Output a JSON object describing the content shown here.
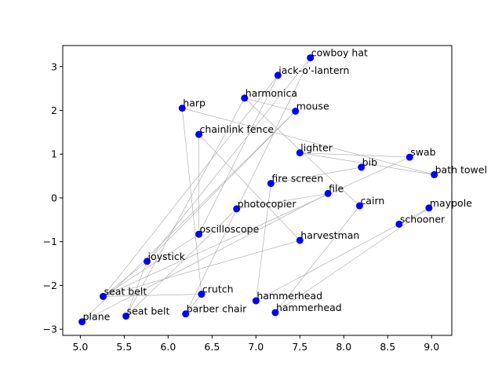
{
  "chart_data": {
    "type": "scatter",
    "title": "",
    "xlabel": "",
    "ylabel": "",
    "xlim": [
      4.8,
      9.23
    ],
    "ylim": [
      -3.14,
      3.48
    ],
    "xticks": [
      5.0,
      5.5,
      6.0,
      6.5,
      7.0,
      7.5,
      8.0,
      8.5,
      9.0
    ],
    "xtick_labels": [
      "5.0",
      "5.5",
      "6.0",
      "6.5",
      "7.0",
      "7.5",
      "8.0",
      "8.5",
      "9.0"
    ],
    "yticks": [
      -3,
      -2,
      -1,
      0,
      1,
      2,
      3
    ],
    "ytick_labels": [
      "−3",
      "−2",
      "−1",
      "0",
      "1",
      "2",
      "3"
    ],
    "grid": false,
    "marker_color": "#0000ff",
    "edge_color": "#a6a6a6",
    "points": [
      {
        "label": "cowboy hat",
        "x": 7.62,
        "y": 3.2
      },
      {
        "label": "jack-o'-lantern",
        "x": 7.25,
        "y": 2.8
      },
      {
        "label": "harmonica",
        "x": 6.87,
        "y": 2.28
      },
      {
        "label": "harp",
        "x": 6.16,
        "y": 2.05
      },
      {
        "label": "mouse",
        "x": 7.45,
        "y": 1.98
      },
      {
        "label": "chainlink fence",
        "x": 6.35,
        "y": 1.45
      },
      {
        "label": "lighter",
        "x": 7.5,
        "y": 1.03
      },
      {
        "label": "swab",
        "x": 8.75,
        "y": 0.93
      },
      {
        "label": "bib",
        "x": 8.2,
        "y": 0.7
      },
      {
        "label": "bath towel",
        "x": 9.03,
        "y": 0.53
      },
      {
        "label": "fire screen",
        "x": 7.17,
        "y": 0.33
      },
      {
        "label": "file",
        "x": 7.82,
        "y": 0.1
      },
      {
        "label": "cairn",
        "x": 8.18,
        "y": -0.18
      },
      {
        "label": "maypole",
        "x": 8.97,
        "y": -0.23
      },
      {
        "label": "photocopier",
        "x": 6.78,
        "y": -0.25
      },
      {
        "label": "schooner",
        "x": 8.63,
        "y": -0.6
      },
      {
        "label": "oscilloscope",
        "x": 6.35,
        "y": -0.83
      },
      {
        "label": "harvestman",
        "x": 7.5,
        "y": -0.97
      },
      {
        "label": "joystick",
        "x": 5.76,
        "y": -1.45
      },
      {
        "label": "crutch",
        "x": 6.38,
        "y": -2.2
      },
      {
        "label": "seat belt",
        "x": 5.26,
        "y": -2.25
      },
      {
        "label": "hammerhead",
        "x": 7.0,
        "y": -2.35
      },
      {
        "label": "barber chair",
        "x": 6.2,
        "y": -2.65
      },
      {
        "label": "hammerhead",
        "x": 7.22,
        "y": -2.62
      },
      {
        "label": "seat belt",
        "x": 5.52,
        "y": -2.7
      },
      {
        "label": "plane",
        "x": 5.02,
        "y": -2.83
      }
    ],
    "edges": [
      [
        0,
        18
      ],
      [
        0,
        22
      ],
      [
        1,
        16
      ],
      [
        1,
        20
      ],
      [
        2,
        4
      ],
      [
        2,
        12
      ],
      [
        2,
        24
      ],
      [
        3,
        19
      ],
      [
        3,
        9
      ],
      [
        4,
        25
      ],
      [
        4,
        18
      ],
      [
        5,
        17
      ],
      [
        5,
        16
      ],
      [
        6,
        9
      ],
      [
        7,
        20
      ],
      [
        8,
        10
      ],
      [
        10,
        21
      ],
      [
        11,
        14
      ],
      [
        11,
        25
      ],
      [
        12,
        23
      ],
      [
        13,
        15
      ],
      [
        15,
        21
      ],
      [
        16,
        20
      ],
      [
        17,
        20
      ],
      [
        18,
        20
      ],
      [
        19,
        20
      ],
      [
        22,
        19
      ],
      [
        24,
        18
      ],
      [
        23,
        13
      ],
      [
        6,
        7
      ],
      [
        14,
        24
      ]
    ]
  }
}
